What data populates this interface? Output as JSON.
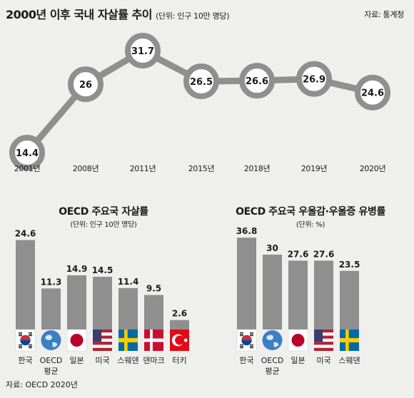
{
  "title": "2000년 이후 국내 자살률 추이",
  "title_unit": "(단위: 인구 10만 명당)",
  "source": "자료: 통계청",
  "bottom_source": "자료: OECD 2020년",
  "colors": {
    "bar": "#8f8f8f",
    "line": "#8f8f8f",
    "marker_ring": "#8f8f8f",
    "marker_fill": "#ffffff",
    "background": "#efefed"
  },
  "chart_data": [
    {
      "type": "line",
      "title": "2000년 이후 국내 자살률 추이",
      "subtitle": "(단위: 인구 10만 명당)",
      "categories": [
        "2001년",
        "2008년",
        "2011년",
        "2015년",
        "2018년",
        "2019년",
        "2020년"
      ],
      "values": [
        14.4,
        26,
        31.7,
        26.5,
        26.6,
        26.9,
        24.6
      ],
      "value_labels": [
        "14.4",
        "26",
        "31.7",
        "26.5",
        "26.6",
        "26.9",
        "24.6"
      ],
      "grid": false
    },
    {
      "type": "bar",
      "title": "OECD 주요국 자살률",
      "subtitle": "(단위: 인구 10만 명당)",
      "categories": [
        "한국",
        "OECD 평균",
        "일본",
        "미국",
        "스웨덴",
        "덴마크",
        "터키"
      ],
      "category_lines": [
        [
          "한국"
        ],
        [
          "OECD",
          "평균"
        ],
        [
          "일본"
        ],
        [
          "미국"
        ],
        [
          "스웨덴"
        ],
        [
          "덴마크"
        ],
        [
          "터키"
        ]
      ],
      "flags": [
        "korea-flag",
        "oecd-globe",
        "japan-flag",
        "usa-flag",
        "sweden-flag",
        "denmark-flag",
        "turkey-flag"
      ],
      "values": [
        24.6,
        11.3,
        14.9,
        14.5,
        11.4,
        9.5,
        2.6
      ],
      "value_labels": [
        "24.6",
        "11.3",
        "14.9",
        "14.5",
        "11.4",
        "9.5",
        "2.6"
      ],
      "grid": false
    },
    {
      "type": "bar",
      "title": "OECD 주요국 우울감·우울증 유병률",
      "subtitle": "(단위: %)",
      "categories": [
        "한국",
        "OECD 평균",
        "일본",
        "미국",
        "스웨덴"
      ],
      "category_lines": [
        [
          "한국"
        ],
        [
          "OECD",
          "평균"
        ],
        [
          "일본"
        ],
        [
          "미국"
        ],
        [
          "스웨덴"
        ]
      ],
      "flags": [
        "korea-flag",
        "oecd-globe",
        "japan-flag",
        "usa-flag",
        "sweden-flag"
      ],
      "values": [
        36.8,
        30,
        27.6,
        27.6,
        23.5
      ],
      "value_labels": [
        "36.8",
        "30",
        "27.6",
        "27.6",
        "23.5"
      ],
      "grid": false
    }
  ]
}
